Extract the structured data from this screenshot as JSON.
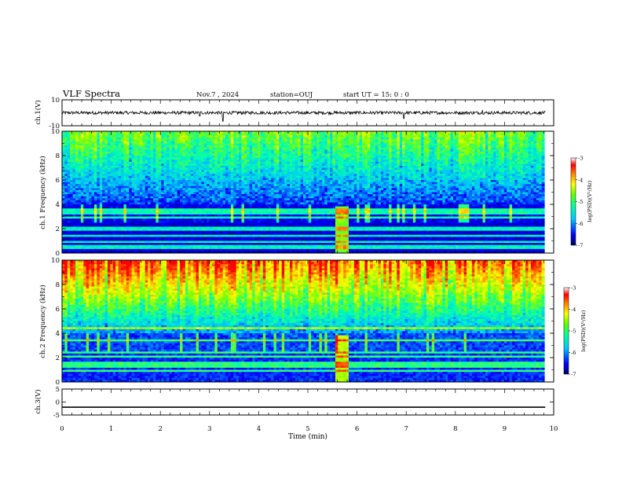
{
  "header": {
    "title": "VLF Spectra",
    "date": "Nov.7 , 2024",
    "station": "station=OUJ",
    "start": "start UT = 15: 0 : 0"
  },
  "chart_data": [
    {
      "type": "line",
      "panel": "ch1-waveform",
      "ylabel": "ch.1(V)",
      "ylim": [
        -10,
        10
      ],
      "ytick_labels": [
        "10",
        "-10"
      ],
      "baseline_value": 0,
      "noise_amplitude": 1.2,
      "spikes": [
        {
          "t": 2.8,
          "v": -2.5
        },
        {
          "t": 3.27,
          "v": -6.5
        },
        {
          "t": 6.95,
          "v": -4.5
        },
        {
          "t": 8.55,
          "v": 2.0
        }
      ]
    },
    {
      "type": "heatmap",
      "panel": "ch1-spectrogram",
      "ylabel": "ch.1 Frequency (kHz)",
      "ylim": [
        0,
        10
      ],
      "ytick_labels": [
        "0",
        "2",
        "4",
        "6",
        "8",
        "10"
      ],
      "colorbar": {
        "label": "log(PSD)(V²/Hz)",
        "range": [
          -7,
          -3
        ],
        "tick_labels": [
          "-3",
          "-4",
          "-5",
          "-6",
          "-7"
        ]
      },
      "intensity_base": 0.05,
      "top_band_intensity": 0.45,
      "lines_khz": [
        0.5,
        0.7,
        1.0,
        1.5,
        2.0,
        2.2,
        3.0,
        3.3,
        3.6
      ]
    },
    {
      "type": "heatmap",
      "panel": "ch2-spectrogram",
      "ylabel": "ch.2 Frequency (kHz)",
      "ylim": [
        0,
        10
      ],
      "ytick_labels": [
        "0",
        "2",
        "4",
        "6",
        "8",
        "10"
      ],
      "colorbar": {
        "label": "log(PSD)(V²/Hz)",
        "range": [
          -7,
          -3
        ],
        "tick_labels": [
          "-3",
          "-4",
          "-5",
          "-6",
          "-7"
        ]
      },
      "intensity_base": 0.12,
      "top_band_intensity": 0.78,
      "lines_khz": [
        1.0,
        1.3,
        1.6,
        2.2,
        2.5,
        3.5,
        4.5
      ]
    },
    {
      "type": "line",
      "panel": "ch3-waveform",
      "ylabel": "ch.3(V)",
      "ylim": [
        -5,
        5
      ],
      "ytick_labels": [
        "5",
        "0",
        "-5"
      ],
      "constant_value": -2.0
    }
  ],
  "xaxis": {
    "label": "Time (min)",
    "range": [
      0,
      10
    ],
    "tick_labels": [
      "0",
      "1",
      "2",
      "3",
      "4",
      "5",
      "6",
      "7",
      "8",
      "9",
      "10"
    ]
  },
  "colors": {
    "colormap": [
      "#000080",
      "#0000ff",
      "#00c0ff",
      "#00ffb0",
      "#80ff00",
      "#ffff00",
      "#ff8000",
      "#ff0000",
      "#ffffff"
    ]
  }
}
